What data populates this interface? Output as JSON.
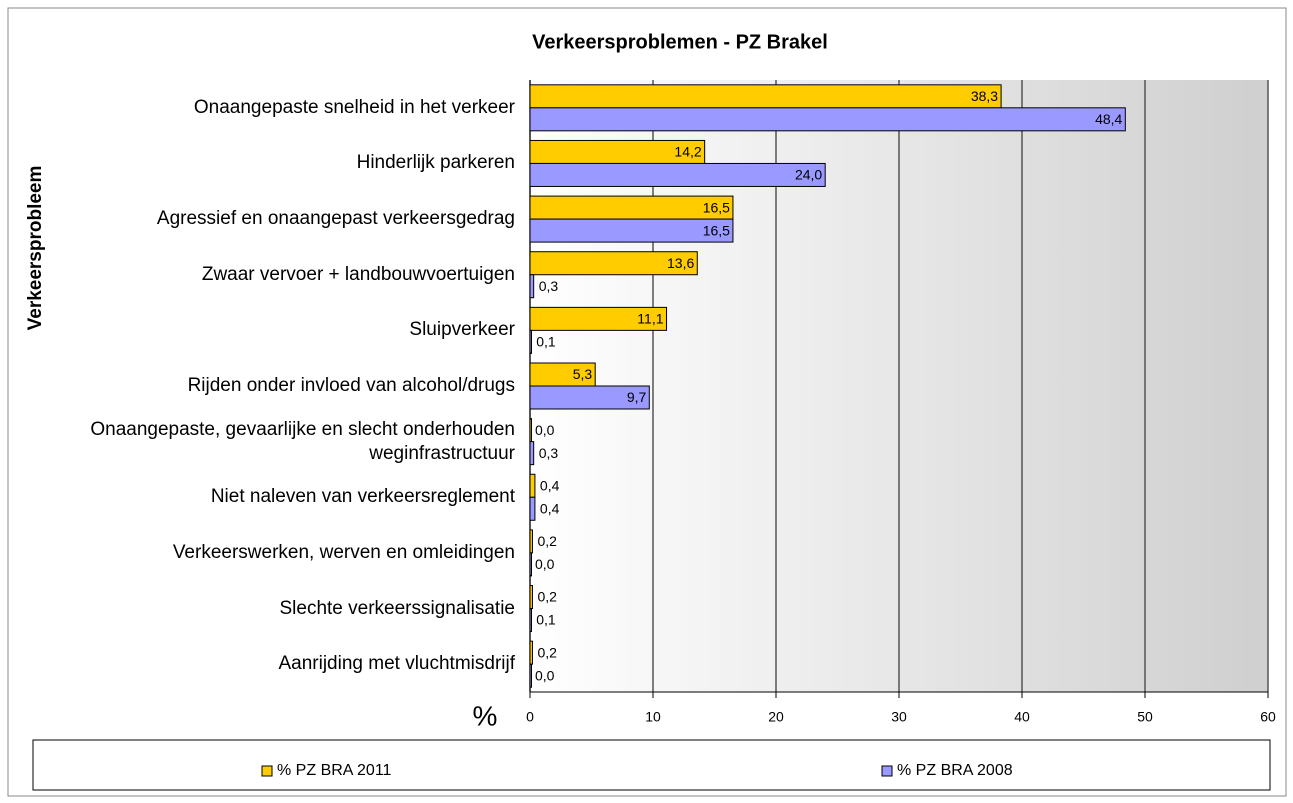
{
  "chart_data": {
    "type": "bar",
    "orientation": "horizontal",
    "title": "Verkeersproblemen - PZ Brakel",
    "y_label": "Verkeersprobleem",
    "x_label": "%",
    "categories": [
      "Onaangepaste snelheid in het verkeer",
      "Hinderlijk parkeren",
      "Agressief en onaangepast verkeersgedrag",
      "Zwaar vervoer + landbouwvoertuigen",
      "Sluipverkeer",
      "Rijden onder invloed van alcohol/drugs",
      "Onaangepaste, gevaarlijke en slecht onderhouden weginfrastructuur",
      "Niet naleven van verkeersreglement",
      "Verkeerswerken, werven en omleidingen",
      "Slechte verkeerssignalisatie",
      "Aanrijding met vluchtmisdrijf"
    ],
    "series": [
      {
        "name": "% PZ BRA 2011",
        "color": "#ffcc00",
        "values": [
          38.3,
          14.2,
          16.5,
          13.6,
          11.1,
          5.3,
          0.0,
          0.4,
          0.2,
          0.2,
          0.2
        ],
        "value_labels": [
          "38,3",
          "14,2",
          "16,5",
          "13,6",
          "11,1",
          "5,3",
          "0,0",
          "0,4",
          "0,2",
          "0,2",
          "0,2"
        ]
      },
      {
        "name": "% PZ BRA 2008",
        "color": "#9999ff",
        "values": [
          48.4,
          24.0,
          16.5,
          0.3,
          0.1,
          9.7,
          0.3,
          0.4,
          0.0,
          0.1,
          0.0
        ],
        "value_labels": [
          "48,4",
          "24,0",
          "16,5",
          "0,3",
          "0,1",
          "9,7",
          "0,3",
          "0,4",
          "0,0",
          "0,1",
          "0,0"
        ]
      }
    ],
    "xlim": [
      0,
      60
    ],
    "xticks": [
      0,
      10,
      20,
      30,
      40,
      50,
      60
    ],
    "grid": true,
    "legend": "bottom"
  }
}
